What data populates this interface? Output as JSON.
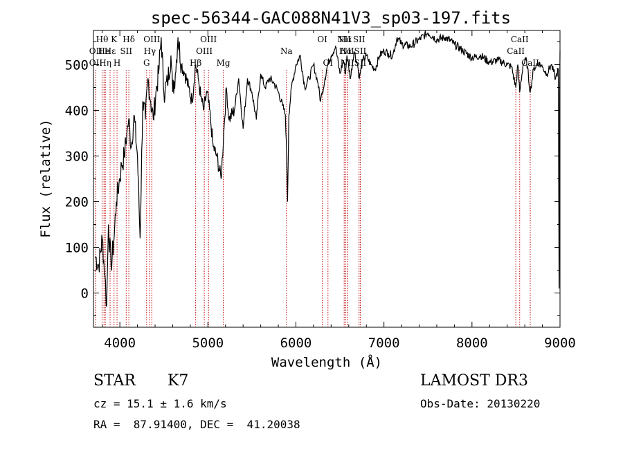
{
  "chart_data": {
    "type": "line",
    "title": "spec-56344-GAC088N41V3_sp03-197.fits",
    "xlabel": "Wavelength (Å)",
    "ylabel": "Flux (relative)",
    "xlim": [
      3700,
      9000
    ],
    "ylim": [
      -75,
      575
    ],
    "xticks": [
      4000,
      5000,
      6000,
      7000,
      8000,
      9000
    ],
    "yticks": [
      0,
      100,
      200,
      300,
      400,
      500
    ],
    "series": [
      {
        "name": "spectrum",
        "x": [
          3720,
          3760,
          3800,
          3830,
          3850,
          3870,
          3900,
          3930,
          3960,
          3990,
          4020,
          4050,
          4080,
          4100,
          4130,
          4160,
          4200,
          4230,
          4260,
          4290,
          4320,
          4350,
          4380,
          4410,
          4440,
          4470,
          4500,
          4540,
          4580,
          4600,
          4630,
          4660,
          4700,
          4740,
          4780,
          4820,
          4860,
          4890,
          4920,
          4950,
          4990,
          5030,
          5060,
          5100,
          5150,
          5180,
          5210,
          5240,
          5300,
          5350,
          5400,
          5450,
          5500,
          5550,
          5600,
          5650,
          5700,
          5750,
          5800,
          5850,
          5880,
          5895,
          5905,
          5920,
          5950,
          6000,
          6050,
          6100,
          6150,
          6200,
          6250,
          6280,
          6300,
          6330,
          6360,
          6400,
          6450,
          6500,
          6540,
          6563,
          6580,
          6620,
          6660,
          6700,
          6720,
          6760,
          6800,
          6850,
          6900,
          6950,
          7000,
          7050,
          7100,
          7150,
          7200,
          7300,
          7400,
          7500,
          7600,
          7700,
          7800,
          7900,
          8000,
          8100,
          8200,
          8300,
          8400,
          8450,
          8498,
          8520,
          8542,
          8580,
          8620,
          8662,
          8700,
          8750,
          8800,
          8850,
          8900,
          8950,
          8980,
          8990,
          8995,
          9000
        ],
        "y": [
          80,
          60,
          120,
          40,
          -30,
          150,
          60,
          110,
          200,
          240,
          280,
          300,
          350,
          380,
          320,
          390,
          300,
          120,
          420,
          380,
          470,
          420,
          380,
          440,
          480,
          560,
          440,
          460,
          520,
          440,
          480,
          560,
          500,
          480,
          450,
          420,
          500,
          470,
          430,
          400,
          440,
          380,
          320,
          300,
          250,
          350,
          450,
          380,
          400,
          470,
          360,
          470,
          440,
          380,
          480,
          450,
          470,
          460,
          440,
          410,
          390,
          300,
          200,
          390,
          450,
          500,
          520,
          450,
          470,
          500,
          460,
          420,
          440,
          470,
          500,
          520,
          540,
          480,
          510,
          480,
          520,
          470,
          530,
          500,
          470,
          510,
          520,
          500,
          490,
          520,
          530,
          525,
          520,
          560,
          545,
          540,
          555,
          570,
          555,
          560,
          545,
          530,
          515,
          520,
          505,
          510,
          500,
          495,
          450,
          500,
          440,
          500,
          510,
          440,
          490,
          505,
          495,
          480,
          500,
          470,
          490,
          10,
          400,
          530
        ]
      }
    ],
    "lines": [
      {
        "label": "Hθ",
        "wave": 3798,
        "row": 1
      },
      {
        "label": "OII",
        "wave": 3727,
        "row": 2
      },
      {
        "label": "OII",
        "wave": 3727,
        "row": 3
      },
      {
        "label": "He",
        "wave": 3820,
        "row": 2
      },
      {
        "label": "Hη",
        "wave": 3835,
        "row": 3
      },
      {
        "label": "K",
        "wave": 3934,
        "row": 1
      },
      {
        "label": "H",
        "wave": 3968,
        "row": 3
      },
      {
        "label": "Hε",
        "wave": 3889,
        "row": 2
      },
      {
        "label": "Hδ",
        "wave": 4102,
        "row": 1
      },
      {
        "label": "SII",
        "wave": 4072,
        "row": 2
      },
      {
        "label": "OIII",
        "wave": 4363,
        "row": 1
      },
      {
        "label": "Hγ",
        "wave": 4340,
        "row": 2
      },
      {
        "label": "G",
        "wave": 4304,
        "row": 3
      },
      {
        "label": "Hβ",
        "wave": 4861,
        "row": 3
      },
      {
        "label": "OIII",
        "wave": 5007,
        "row": 1
      },
      {
        "label": "OIII",
        "wave": 4959,
        "row": 2
      },
      {
        "label": "Mg",
        "wave": 5175,
        "row": 3
      },
      {
        "label": "Na",
        "wave": 5893,
        "row": 2
      },
      {
        "label": "OI",
        "wave": 6300,
        "row": 1
      },
      {
        "label": "OI",
        "wave": 6364,
        "row": 3
      },
      {
        "label": "NII",
        "wave": 6548,
        "row": 1
      },
      {
        "label": "Hα",
        "wave": 6563,
        "row": 1
      },
      {
        "label": "SII",
        "wave": 6717,
        "row": 1
      },
      {
        "label": "NII",
        "wave": 6583,
        "row": 2
      },
      {
        "label": "Hα",
        "wave": 6563,
        "row": 2
      },
      {
        "label": "SII",
        "wave": 6731,
        "row": 2
      },
      {
        "label": "NII",
        "wave": 6583,
        "row": 3
      },
      {
        "label": "SII",
        "wave": 6731,
        "row": 3
      },
      {
        "label": "CaII",
        "wave": 8542,
        "row": 1
      },
      {
        "label": "CaII",
        "wave": 8498,
        "row": 2
      },
      {
        "label": "CaII",
        "wave": 8662,
        "row": 3
      }
    ]
  },
  "info": {
    "class_label": "STAR",
    "subclass": "K7",
    "survey": "LAMOST DR3",
    "redshift": "cz = 15.1 ± 1.6 km/s",
    "obs_date": "Obs-Date: 20130220",
    "coords": "RA =  87.91400, DEC =  41.20038"
  }
}
